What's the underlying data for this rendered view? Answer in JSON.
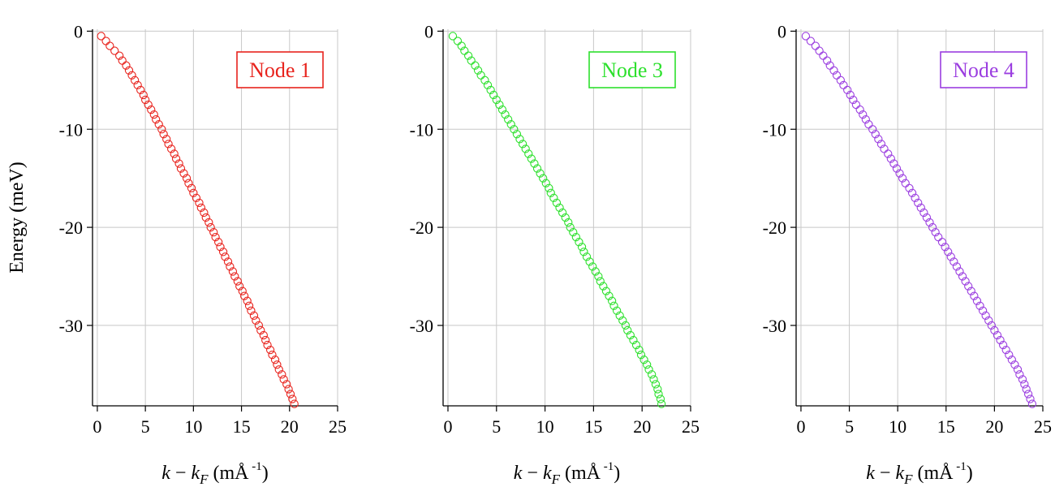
{
  "chart_data": [
    {
      "type": "scatter",
      "ylabel": "Energy (meV)",
      "xlabel": "k − k_F (mÅ^-1)",
      "xlim": [
        -0.5,
        25
      ],
      "ylim": [
        -38.2,
        0.2
      ],
      "xticks": [
        "0",
        "5",
        "10",
        "15",
        "20",
        "25"
      ],
      "yticks": [
        "0",
        "-10",
        "-20",
        "-30"
      ],
      "grid": true,
      "legend_position": "top-right",
      "series": [
        {
          "name": "Node 1",
          "color": "#e8231d",
          "marker": "open-circle",
          "points": [
            [
              0.4,
              -0.5
            ],
            [
              0.9,
              -1.0
            ],
            [
              1.3,
              -1.5
            ],
            [
              1.8,
              -2.0
            ],
            [
              2.3,
              -2.5
            ],
            [
              2.6,
              -3.0
            ],
            [
              3.0,
              -3.5
            ],
            [
              3.3,
              -4.0
            ],
            [
              3.6,
              -4.5
            ],
            [
              3.9,
              -5.0
            ],
            [
              4.2,
              -5.5
            ],
            [
              4.5,
              -6.0
            ],
            [
              4.8,
              -6.5
            ],
            [
              5.0,
              -7.0
            ],
            [
              5.3,
              -7.5
            ],
            [
              5.6,
              -8.0
            ],
            [
              5.9,
              -8.5
            ],
            [
              6.1,
              -9.0
            ],
            [
              6.4,
              -9.5
            ],
            [
              6.7,
              -10.0
            ],
            [
              6.9,
              -10.5
            ],
            [
              7.2,
              -11.0
            ],
            [
              7.4,
              -11.5
            ],
            [
              7.7,
              -12.0
            ],
            [
              8.0,
              -12.5
            ],
            [
              8.2,
              -13.0
            ],
            [
              8.5,
              -13.5
            ],
            [
              8.7,
              -14.0
            ],
            [
              9.0,
              -14.5
            ],
            [
              9.3,
              -15.0
            ],
            [
              9.5,
              -15.5
            ],
            [
              9.8,
              -16.0
            ],
            [
              10.0,
              -16.5
            ],
            [
              10.3,
              -17.0
            ],
            [
              10.6,
              -17.5
            ],
            [
              10.8,
              -18.0
            ],
            [
              11.1,
              -18.5
            ],
            [
              11.3,
              -19.0
            ],
            [
              11.6,
              -19.5
            ],
            [
              11.8,
              -20.0
            ],
            [
              12.1,
              -20.5
            ],
            [
              12.3,
              -21.0
            ],
            [
              12.6,
              -21.5
            ],
            [
              12.8,
              -22.0
            ],
            [
              13.1,
              -22.5
            ],
            [
              13.3,
              -23.0
            ],
            [
              13.6,
              -23.5
            ],
            [
              13.8,
              -24.0
            ],
            [
              14.1,
              -24.5
            ],
            [
              14.3,
              -25.0
            ],
            [
              14.6,
              -25.5
            ],
            [
              14.8,
              -26.0
            ],
            [
              15.1,
              -26.5
            ],
            [
              15.3,
              -27.0
            ],
            [
              15.6,
              -27.5
            ],
            [
              15.8,
              -28.0
            ],
            [
              16.0,
              -28.5
            ],
            [
              16.3,
              -29.0
            ],
            [
              16.5,
              -29.5
            ],
            [
              16.8,
              -30.0
            ],
            [
              17.0,
              -30.5
            ],
            [
              17.3,
              -31.0
            ],
            [
              17.5,
              -31.5
            ],
            [
              17.7,
              -32.0
            ],
            [
              18.0,
              -32.5
            ],
            [
              18.2,
              -33.0
            ],
            [
              18.5,
              -33.5
            ],
            [
              18.7,
              -34.0
            ],
            [
              18.9,
              -34.5
            ],
            [
              19.2,
              -35.0
            ],
            [
              19.4,
              -35.5
            ],
            [
              19.7,
              -36.0
            ],
            [
              19.9,
              -36.5
            ],
            [
              20.1,
              -37.0
            ],
            [
              20.3,
              -37.5
            ],
            [
              20.5,
              -38.0
            ]
          ]
        }
      ]
    },
    {
      "type": "scatter",
      "xlabel": "k − k_F (mÅ^-1)",
      "xlim": [
        -0.5,
        25
      ],
      "ylim": [
        -38.2,
        0.2
      ],
      "xticks": [
        "0",
        "5",
        "10",
        "15",
        "20",
        "25"
      ],
      "yticks": [
        "0",
        "-10",
        "-20",
        "-30"
      ],
      "grid": true,
      "legend_position": "top-right",
      "series": [
        {
          "name": "Node 3",
          "color": "#2de02d",
          "marker": "open-circle",
          "points": [
            [
              0.5,
              -0.5
            ],
            [
              1.0,
              -1.0
            ],
            [
              1.4,
              -1.5
            ],
            [
              1.7,
              -2.0
            ],
            [
              2.1,
              -2.5
            ],
            [
              2.4,
              -3.0
            ],
            [
              2.8,
              -3.5
            ],
            [
              3.1,
              -4.0
            ],
            [
              3.4,
              -4.5
            ],
            [
              3.8,
              -5.0
            ],
            [
              4.1,
              -5.5
            ],
            [
              4.4,
              -6.0
            ],
            [
              4.7,
              -6.5
            ],
            [
              5.0,
              -7.0
            ],
            [
              5.3,
              -7.5
            ],
            [
              5.6,
              -8.0
            ],
            [
              5.9,
              -8.5
            ],
            [
              6.2,
              -9.0
            ],
            [
              6.5,
              -9.5
            ],
            [
              6.8,
              -10.0
            ],
            [
              7.1,
              -10.5
            ],
            [
              7.4,
              -11.0
            ],
            [
              7.7,
              -11.5
            ],
            [
              8.0,
              -12.0
            ],
            [
              8.3,
              -12.5
            ],
            [
              8.6,
              -13.0
            ],
            [
              8.9,
              -13.5
            ],
            [
              9.2,
              -14.0
            ],
            [
              9.5,
              -14.5
            ],
            [
              9.8,
              -15.0
            ],
            [
              10.1,
              -15.5
            ],
            [
              10.4,
              -16.0
            ],
            [
              10.6,
              -16.5
            ],
            [
              10.9,
              -17.0
            ],
            [
              11.2,
              -17.5
            ],
            [
              11.5,
              -18.0
            ],
            [
              11.8,
              -18.5
            ],
            [
              12.1,
              -19.0
            ],
            [
              12.4,
              -19.5
            ],
            [
              12.6,
              -20.0
            ],
            [
              12.9,
              -20.5
            ],
            [
              13.2,
              -21.0
            ],
            [
              13.5,
              -21.5
            ],
            [
              13.8,
              -22.0
            ],
            [
              14.0,
              -22.5
            ],
            [
              14.3,
              -23.0
            ],
            [
              14.6,
              -23.5
            ],
            [
              14.9,
              -24.0
            ],
            [
              15.2,
              -24.5
            ],
            [
              15.5,
              -25.0
            ],
            [
              15.7,
              -25.5
            ],
            [
              16.0,
              -26.0
            ],
            [
              16.3,
              -26.5
            ],
            [
              16.6,
              -27.0
            ],
            [
              16.9,
              -27.5
            ],
            [
              17.1,
              -28.0
            ],
            [
              17.4,
              -28.5
            ],
            [
              17.7,
              -29.0
            ],
            [
              18.0,
              -29.5
            ],
            [
              18.3,
              -30.0
            ],
            [
              18.5,
              -30.5
            ],
            [
              18.8,
              -31.0
            ],
            [
              19.1,
              -31.5
            ],
            [
              19.4,
              -32.0
            ],
            [
              19.7,
              -32.5
            ],
            [
              19.9,
              -33.0
            ],
            [
              20.2,
              -33.5
            ],
            [
              20.5,
              -34.0
            ],
            [
              20.7,
              -34.5
            ],
            [
              21.0,
              -35.0
            ],
            [
              21.2,
              -35.5
            ],
            [
              21.4,
              -36.0
            ],
            [
              21.6,
              -36.5
            ],
            [
              21.7,
              -37.0
            ],
            [
              21.9,
              -37.5
            ],
            [
              22.0,
              -38.0
            ]
          ]
        }
      ]
    },
    {
      "type": "scatter",
      "xlabel": "k − k_F (mÅ^-1)",
      "xlim": [
        -0.5,
        25
      ],
      "ylim": [
        -38.2,
        0.2
      ],
      "xticks": [
        "0",
        "5",
        "10",
        "15",
        "20",
        "25"
      ],
      "yticks": [
        "0",
        "-10",
        "-20",
        "-30"
      ],
      "grid": true,
      "legend_position": "top-right",
      "series": [
        {
          "name": "Node 4",
          "color": "#9b3ee0",
          "marker": "open-circle",
          "points": [
            [
              0.5,
              -0.5
            ],
            [
              1.0,
              -1.0
            ],
            [
              1.5,
              -1.5
            ],
            [
              1.9,
              -2.0
            ],
            [
              2.3,
              -2.5
            ],
            [
              2.7,
              -3.0
            ],
            [
              3.0,
              -3.5
            ],
            [
              3.4,
              -4.0
            ],
            [
              3.7,
              -4.5
            ],
            [
              4.1,
              -5.0
            ],
            [
              4.4,
              -5.5
            ],
            [
              4.8,
              -6.0
            ],
            [
              5.1,
              -6.5
            ],
            [
              5.4,
              -7.0
            ],
            [
              5.7,
              -7.5
            ],
            [
              6.1,
              -8.0
            ],
            [
              6.4,
              -8.5
            ],
            [
              6.7,
              -9.0
            ],
            [
              7.0,
              -9.5
            ],
            [
              7.4,
              -10.0
            ],
            [
              7.7,
              -10.5
            ],
            [
              8.0,
              -11.0
            ],
            [
              8.3,
              -11.5
            ],
            [
              8.6,
              -12.0
            ],
            [
              9.0,
              -12.5
            ],
            [
              9.3,
              -13.0
            ],
            [
              9.6,
              -13.5
            ],
            [
              9.9,
              -14.0
            ],
            [
              10.2,
              -14.5
            ],
            [
              10.5,
              -15.0
            ],
            [
              10.8,
              -15.5
            ],
            [
              11.2,
              -16.0
            ],
            [
              11.5,
              -16.5
            ],
            [
              11.8,
              -17.0
            ],
            [
              12.1,
              -17.5
            ],
            [
              12.4,
              -18.0
            ],
            [
              12.7,
              -18.5
            ],
            [
              13.0,
              -19.0
            ],
            [
              13.3,
              -19.5
            ],
            [
              13.6,
              -20.0
            ],
            [
              13.9,
              -20.5
            ],
            [
              14.2,
              -21.0
            ],
            [
              14.6,
              -21.5
            ],
            [
              14.9,
              -22.0
            ],
            [
              15.2,
              -22.5
            ],
            [
              15.5,
              -23.0
            ],
            [
              15.8,
              -23.5
            ],
            [
              16.1,
              -24.0
            ],
            [
              16.4,
              -24.5
            ],
            [
              16.7,
              -25.0
            ],
            [
              17.0,
              -25.5
            ],
            [
              17.3,
              -26.0
            ],
            [
              17.6,
              -26.5
            ],
            [
              17.9,
              -27.0
            ],
            [
              18.2,
              -27.5
            ],
            [
              18.5,
              -28.0
            ],
            [
              18.8,
              -28.5
            ],
            [
              19.1,
              -29.0
            ],
            [
              19.4,
              -29.5
            ],
            [
              19.7,
              -30.0
            ],
            [
              20.0,
              -30.5
            ],
            [
              20.3,
              -31.0
            ],
            [
              20.6,
              -31.5
            ],
            [
              20.9,
              -32.0
            ],
            [
              21.2,
              -32.5
            ],
            [
              21.5,
              -33.0
            ],
            [
              21.8,
              -33.5
            ],
            [
              22.1,
              -34.0
            ],
            [
              22.4,
              -34.5
            ],
            [
              22.6,
              -35.0
            ],
            [
              22.9,
              -35.5
            ],
            [
              23.1,
              -36.0
            ],
            [
              23.3,
              -36.5
            ],
            [
              23.5,
              -37.0
            ],
            [
              23.7,
              -37.5
            ],
            [
              23.9,
              -38.0
            ]
          ]
        }
      ]
    }
  ]
}
